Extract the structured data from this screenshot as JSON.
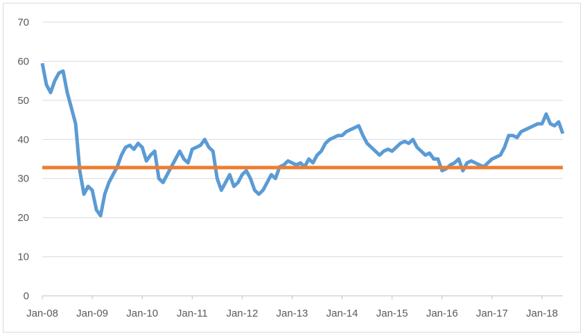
{
  "chart_data": {
    "type": "line",
    "title": "",
    "xlabel": "",
    "ylabel": "",
    "ylim": [
      0,
      70
    ],
    "yticks": [
      0,
      10,
      20,
      30,
      40,
      50,
      60,
      70
    ],
    "xlim": [
      "2008-01",
      "2018-06"
    ],
    "xticks": [
      "Jan-08",
      "Jan-09",
      "Jan-10",
      "Jan-11",
      "Jan-12",
      "Jan-13",
      "Jan-14",
      "Jan-15",
      "Jan-16",
      "Jan-17",
      "Jan-18"
    ],
    "grid": true,
    "legend": "none",
    "series": [
      {
        "color": "#5b9bd5",
        "points": [
          [
            "2008-01",
            59.5
          ],
          [
            "2008-02",
            54
          ],
          [
            "2008-03",
            52
          ],
          [
            "2008-04",
            55
          ],
          [
            "2008-05",
            57
          ],
          [
            "2008-06",
            57.5
          ],
          [
            "2008-07",
            52
          ],
          [
            "2008-08",
            48
          ],
          [
            "2008-09",
            44
          ],
          [
            "2008-10",
            32
          ],
          [
            "2008-11",
            26
          ],
          [
            "2008-12",
            28
          ],
          [
            "2009-01",
            27
          ],
          [
            "2009-02",
            22
          ],
          [
            "2009-03",
            20.5
          ],
          [
            "2009-04",
            26
          ],
          [
            "2009-05",
            29
          ],
          [
            "2009-06",
            31
          ],
          [
            "2009-07",
            33
          ],
          [
            "2009-08",
            36
          ],
          [
            "2009-09",
            38
          ],
          [
            "2009-10",
            38.5
          ],
          [
            "2009-11",
            37.5
          ],
          [
            "2009-12",
            39
          ],
          [
            "2010-01",
            38
          ],
          [
            "2010-02",
            34.5
          ],
          [
            "2010-03",
            36
          ],
          [
            "2010-04",
            37
          ],
          [
            "2010-05",
            30
          ],
          [
            "2010-06",
            29
          ],
          [
            "2010-07",
            31
          ],
          [
            "2010-08",
            33
          ],
          [
            "2010-09",
            35
          ],
          [
            "2010-10",
            37
          ],
          [
            "2010-11",
            35
          ],
          [
            "2010-12",
            34
          ],
          [
            "2011-01",
            37.5
          ],
          [
            "2011-02",
            38
          ],
          [
            "2011-03",
            38.5
          ],
          [
            "2011-04",
            40
          ],
          [
            "2011-05",
            38
          ],
          [
            "2011-06",
            37
          ],
          [
            "2011-07",
            30
          ],
          [
            "2011-08",
            27
          ],
          [
            "2011-09",
            29
          ],
          [
            "2011-10",
            31
          ],
          [
            "2011-11",
            28
          ],
          [
            "2011-12",
            29
          ],
          [
            "2012-01",
            31
          ],
          [
            "2012-02",
            32
          ],
          [
            "2012-03",
            30
          ],
          [
            "2012-04",
            27
          ],
          [
            "2012-05",
            26
          ],
          [
            "2012-06",
            27
          ],
          [
            "2012-07",
            29
          ],
          [
            "2012-08",
            31
          ],
          [
            "2012-09",
            30
          ],
          [
            "2012-10",
            33
          ],
          [
            "2012-11",
            33.5
          ],
          [
            "2012-12",
            34.5
          ],
          [
            "2013-01",
            34
          ],
          [
            "2013-02",
            33.5
          ],
          [
            "2013-03",
            34
          ],
          [
            "2013-04",
            33
          ],
          [
            "2013-05",
            35
          ],
          [
            "2013-06",
            34
          ],
          [
            "2013-07",
            36
          ],
          [
            "2013-08",
            37
          ],
          [
            "2013-09",
            39
          ],
          [
            "2013-10",
            40
          ],
          [
            "2013-11",
            40.5
          ],
          [
            "2013-12",
            41
          ],
          [
            "2014-01",
            41
          ],
          [
            "2014-02",
            42
          ],
          [
            "2014-03",
            42.5
          ],
          [
            "2014-04",
            43
          ],
          [
            "2014-05",
            43.5
          ],
          [
            "2014-06",
            41
          ],
          [
            "2014-07",
            39
          ],
          [
            "2014-08",
            38
          ],
          [
            "2014-09",
            37
          ],
          [
            "2014-10",
            36
          ],
          [
            "2014-11",
            37
          ],
          [
            "2014-12",
            37.5
          ],
          [
            "2015-01",
            37
          ],
          [
            "2015-02",
            38
          ],
          [
            "2015-03",
            39
          ],
          [
            "2015-04",
            39.5
          ],
          [
            "2015-05",
            39
          ],
          [
            "2015-06",
            40
          ],
          [
            "2015-07",
            38
          ],
          [
            "2015-08",
            37
          ],
          [
            "2015-09",
            36
          ],
          [
            "2015-10",
            36.5
          ],
          [
            "2015-11",
            35
          ],
          [
            "2015-12",
            35
          ],
          [
            "2016-01",
            32
          ],
          [
            "2016-02",
            32.5
          ],
          [
            "2016-03",
            33.5
          ],
          [
            "2016-04",
            34
          ],
          [
            "2016-05",
            35
          ],
          [
            "2016-06",
            32
          ],
          [
            "2016-07",
            34
          ],
          [
            "2016-08",
            34.5
          ],
          [
            "2016-09",
            34
          ],
          [
            "2016-10",
            33.5
          ],
          [
            "2016-11",
            33
          ],
          [
            "2016-12",
            34
          ],
          [
            "2017-01",
            35
          ],
          [
            "2017-02",
            35.5
          ],
          [
            "2017-03",
            36
          ],
          [
            "2017-04",
            38
          ],
          [
            "2017-05",
            41
          ],
          [
            "2017-06",
            41
          ],
          [
            "2017-07",
            40.5
          ],
          [
            "2017-08",
            42
          ],
          [
            "2017-09",
            42.5
          ],
          [
            "2017-10",
            43
          ],
          [
            "2017-11",
            43.5
          ],
          [
            "2017-12",
            44
          ],
          [
            "2018-01",
            44
          ],
          [
            "2018-02",
            46.5
          ],
          [
            "2018-03",
            44
          ],
          [
            "2018-04",
            43.5
          ],
          [
            "2018-05",
            44.5
          ],
          [
            "2018-06",
            41.5
          ]
        ]
      },
      {
        "color": "#ed7d31",
        "points": [
          [
            "2008-01",
            32.8
          ],
          [
            "2018-06",
            32.8
          ]
        ]
      }
    ]
  }
}
